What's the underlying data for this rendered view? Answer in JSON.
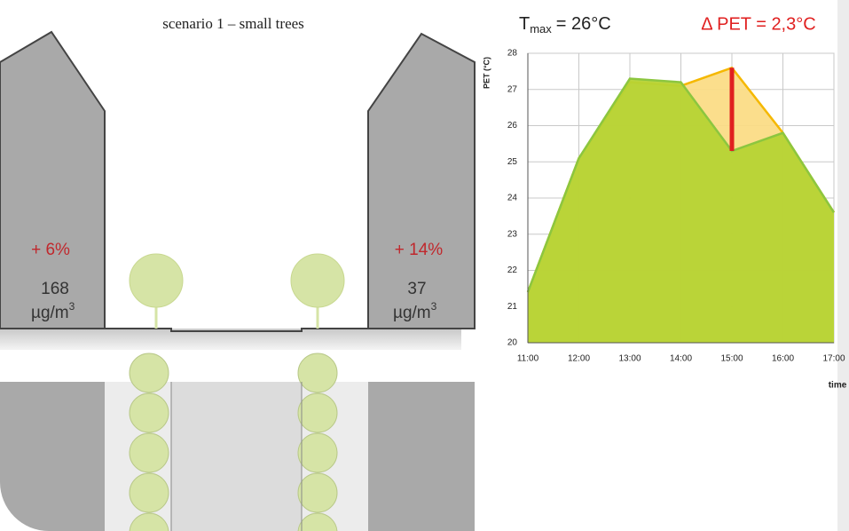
{
  "diagram": {
    "title": "scenario 1 – small trees",
    "left": {
      "change": "+ 6%",
      "value": "168",
      "unit": "µg/m",
      "unit_sup": "3"
    },
    "right": {
      "change": "+ 14%",
      "value": "37",
      "unit": "µg/m",
      "unit_sup": "3"
    }
  },
  "chart_data": {
    "type": "area",
    "title": {
      "t": "T",
      "sub": "max",
      "rest": "= 26°C"
    },
    "annotation": "Δ PET = 2,3°C",
    "y_label": "PET (°C)",
    "x_label": "time",
    "categories": [
      "11:00",
      "12:00",
      "13:00",
      "14:00",
      "15:00",
      "16:00",
      "17:00"
    ],
    "series": [
      {
        "color": "#f5b800",
        "fill": "#fbdc86",
        "values": [
          21.4,
          25.1,
          27.2,
          27.1,
          27.6,
          25.8,
          23.6
        ]
      },
      {
        "color": "#8cc63f",
        "fill": "#b6d334",
        "values": [
          21.4,
          25.1,
          27.3,
          27.2,
          25.3,
          25.8,
          23.6
        ]
      }
    ],
    "marker_color": "#e02020",
    "ylim": [
      20,
      28
    ],
    "yticks": [
      20,
      21,
      22,
      23,
      24,
      25,
      26,
      27,
      28
    ],
    "grid": true
  }
}
